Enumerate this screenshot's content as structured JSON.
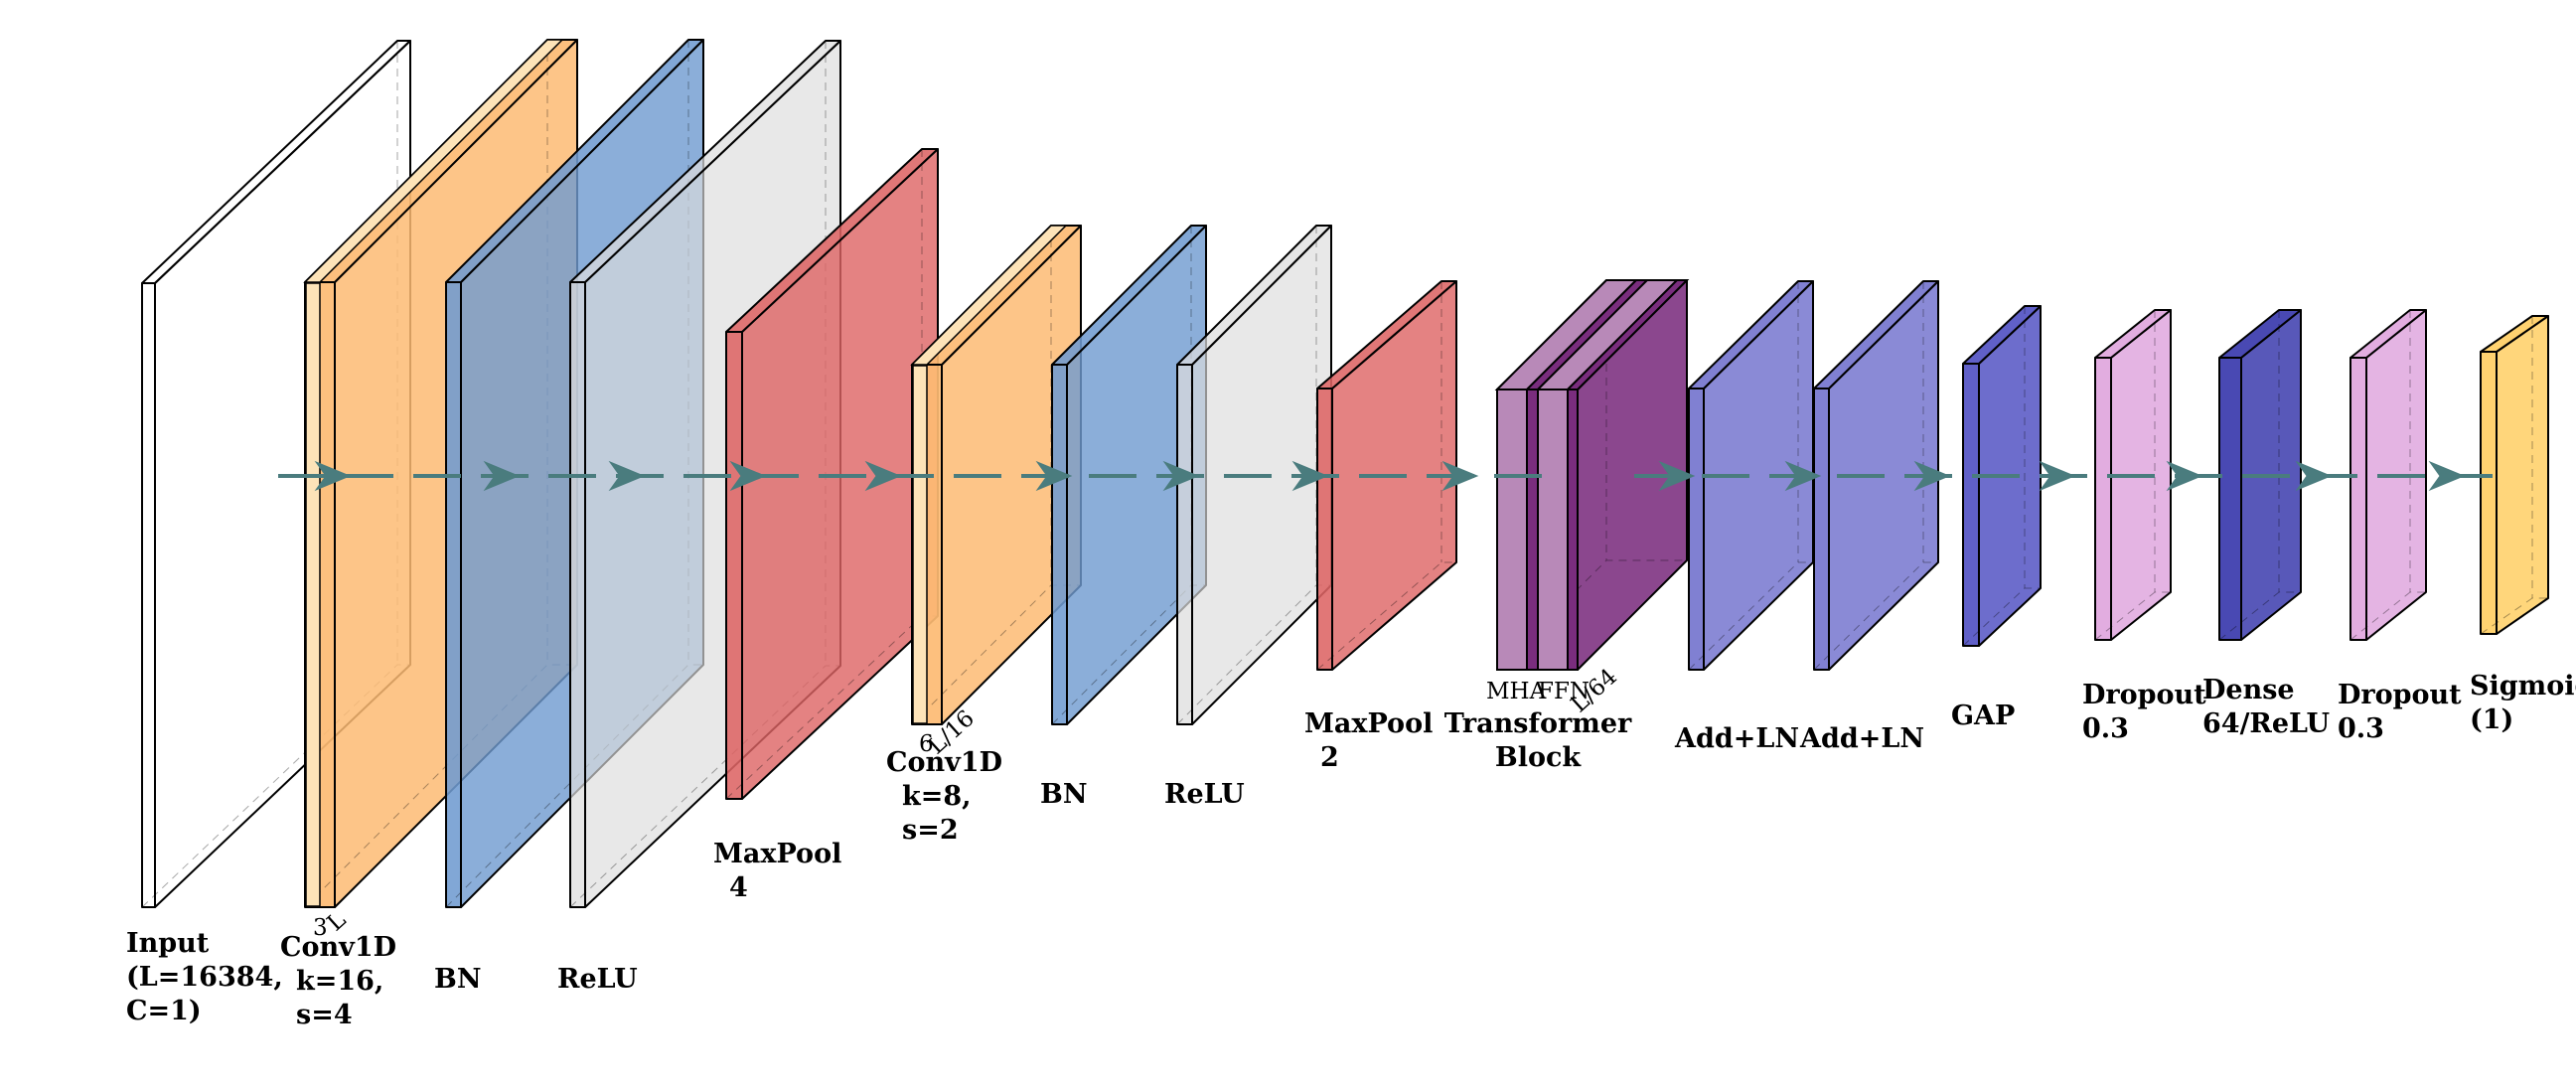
{
  "layers": [
    {
      "id": "input",
      "lines": [
        "Input",
        "(L=16384,",
        "C=1)"
      ],
      "color": "#ffffff",
      "dims": [],
      "kind": "plain"
    },
    {
      "id": "conv1",
      "lines": [
        "Conv1D",
        "k=16,",
        "s=4"
      ],
      "color": "#fdbb73",
      "dims": [
        "3",
        "L"
      ],
      "kind": "conv"
    },
    {
      "id": "bn1",
      "lines": [
        "BN"
      ],
      "color": "#6f9bd0",
      "dims": [],
      "kind": "plain"
    },
    {
      "id": "relu1",
      "lines": [
        "ReLU"
      ],
      "color": "#dcdcdc",
      "dims": [],
      "kind": "plain"
    },
    {
      "id": "pool1",
      "lines": [
        "MaxPool",
        "4"
      ],
      "color": "#dd6464",
      "dims": [],
      "kind": "plain"
    },
    {
      "id": "conv2",
      "lines": [
        "Conv1D",
        "k=8,",
        "s=2"
      ],
      "color": "#fdbb73",
      "dims": [
        "6",
        "L/16"
      ],
      "kind": "conv"
    },
    {
      "id": "bn2",
      "lines": [
        "BN"
      ],
      "color": "#6f9bd0",
      "dims": [],
      "kind": "plain"
    },
    {
      "id": "relu2",
      "lines": [
        "ReLU"
      ],
      "color": "#dcdcdc",
      "dims": [],
      "kind": "plain"
    },
    {
      "id": "pool2",
      "lines": [
        "MaxPool",
        "2"
      ],
      "color": "#dd6464",
      "dims": [],
      "kind": "plain"
    },
    {
      "id": "transformer",
      "lines": [
        "Transformer",
        "Block"
      ],
      "color": "#7a2d7e",
      "dims": [
        "MHA",
        "FFN",
        "L/64"
      ],
      "kind": "transformer"
    },
    {
      "id": "addln1",
      "lines": [
        "Add+LN"
      ],
      "color": "#6e6ecc",
      "dims": [],
      "kind": "plain"
    },
    {
      "id": "addln2",
      "lines": [
        "Add+LN"
      ],
      "color": "#6e6ecc",
      "dims": [],
      "kind": "plain"
    },
    {
      "id": "gap",
      "lines": [
        "GAP"
      ],
      "color": "#4a4ac0",
      "dims": [],
      "kind": "plain"
    },
    {
      "id": "dropout1",
      "lines": [
        "Dropout",
        "0.3"
      ],
      "color": "#dea2dc",
      "dims": [],
      "kind": "plain"
    },
    {
      "id": "dense",
      "lines": [
        "Dense",
        "64/ReLU"
      ],
      "color": "#3030a8",
      "dims": [],
      "kind": "plain"
    },
    {
      "id": "dropout2",
      "lines": [
        "Dropout",
        "0.3"
      ],
      "color": "#dea2dc",
      "dims": [],
      "kind": "plain"
    },
    {
      "id": "sigmoid",
      "lines": [
        "Sigmoid",
        "(1)"
      ],
      "color": "#ffcc5c",
      "dims": [],
      "kind": "plain"
    }
  ],
  "colors": {
    "edge": "#000000",
    "arrow": "#4a7c7e",
    "conv_light": "#fde3b8",
    "transformer_light": "#b889b8"
  }
}
